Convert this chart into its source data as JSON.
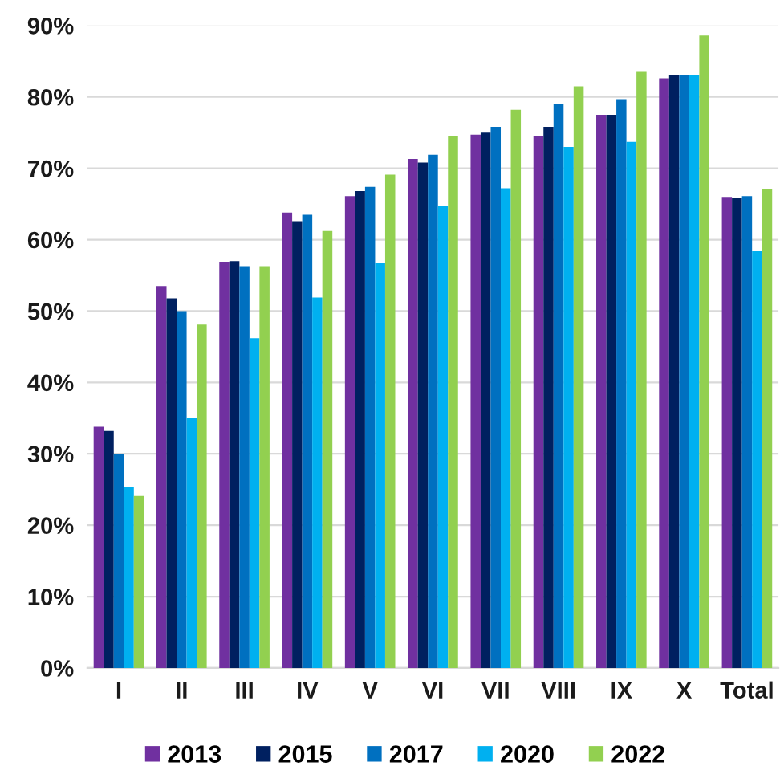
{
  "chart_data": {
    "type": "bar",
    "categories": [
      "I",
      "II",
      "III",
      "IV",
      "V",
      "VI",
      "VII",
      "VIII",
      "IX",
      "X",
      "Total"
    ],
    "series": [
      {
        "name": "2013",
        "color": "#7030a0",
        "values": [
          33.8,
          53.5,
          56.9,
          63.8,
          66.1,
          71.3,
          74.7,
          74.5,
          77.5,
          82.6,
          66.0
        ]
      },
      {
        "name": "2015",
        "color": "#002060",
        "values": [
          33.2,
          51.8,
          57.0,
          62.6,
          66.8,
          70.8,
          75.0,
          75.8,
          77.5,
          83.0,
          65.9
        ]
      },
      {
        "name": "2017",
        "color": "#0070c0",
        "values": [
          30.0,
          50.0,
          56.3,
          63.5,
          67.4,
          71.9,
          75.8,
          79.0,
          79.7,
          83.1,
          66.1
        ]
      },
      {
        "name": "2020",
        "color": "#00b0f0",
        "values": [
          25.4,
          35.1,
          46.2,
          51.9,
          56.7,
          64.7,
          67.2,
          73.0,
          73.7,
          83.1,
          58.4
        ]
      },
      {
        "name": "2022",
        "color": "#92d050",
        "values": [
          24.1,
          48.1,
          56.3,
          61.2,
          69.1,
          74.5,
          78.2,
          81.5,
          83.5,
          88.6,
          67.1
        ]
      }
    ],
    "ylim": [
      0,
      90
    ],
    "yticks": [
      {
        "value": 0,
        "label": "0%"
      },
      {
        "value": 10,
        "label": "10%"
      },
      {
        "value": 20,
        "label": "20%"
      },
      {
        "value": 30,
        "label": "30%"
      },
      {
        "value": 40,
        "label": "40%"
      },
      {
        "value": 50,
        "label": "50%"
      },
      {
        "value": 60,
        "label": "60%"
      },
      {
        "value": 70,
        "label": "70%"
      },
      {
        "value": 80,
        "label": "80%"
      },
      {
        "value": 90,
        "label": "90%"
      }
    ],
    "grid": "y",
    "legend": "bottom"
  }
}
